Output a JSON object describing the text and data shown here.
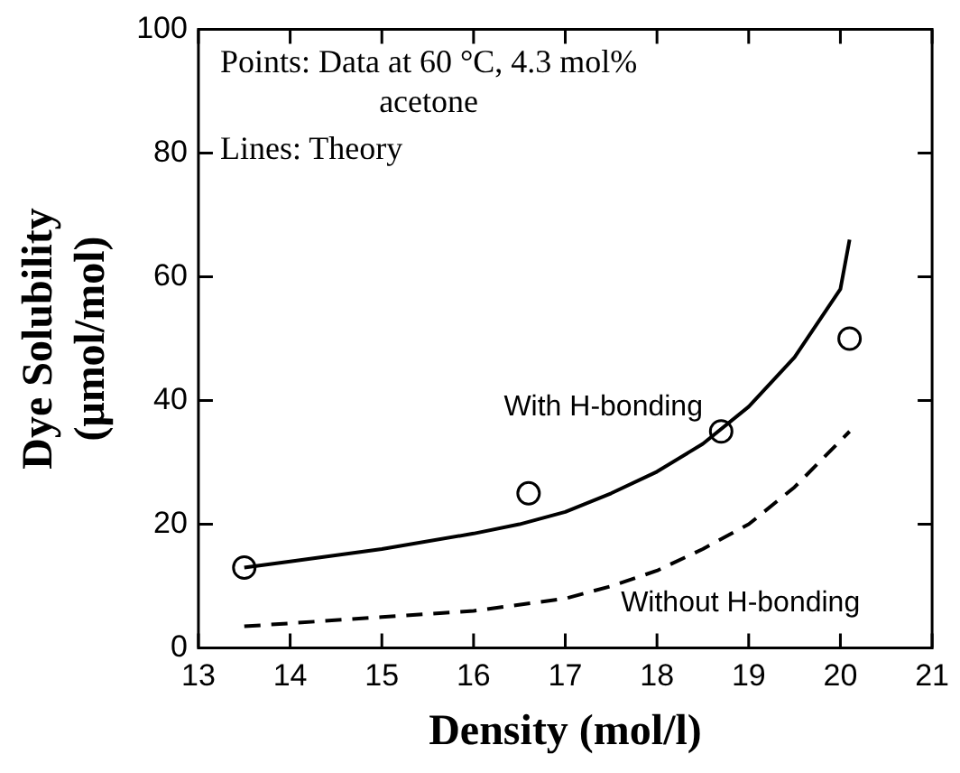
{
  "chart_data": {
    "type": "line",
    "xlabel": "Density (mol/l)",
    "ylabel": "Dye Solubility\n(μmol/mol)",
    "xlim": [
      13,
      21
    ],
    "xticks": [
      13,
      14,
      15,
      16,
      17,
      18,
      19,
      20,
      21
    ],
    "ylim": [
      0,
      100
    ],
    "yticks": [
      0,
      20,
      40,
      60,
      80,
      100
    ],
    "series": [
      {
        "name": "With H-bonding",
        "color": "#000000",
        "line_style": "solid",
        "marker": "none",
        "x": [
          13.5,
          14,
          15,
          16,
          16.5,
          17,
          17.5,
          18,
          18.5,
          19,
          19.5,
          20,
          20.1
        ],
        "values": [
          13,
          14,
          16,
          18.5,
          20,
          22,
          25,
          28.5,
          33,
          39,
          47,
          58,
          66
        ]
      },
      {
        "name": "Without H-bonding",
        "color": "#000000",
        "line_style": "dashed",
        "marker": "none",
        "x": [
          13.5,
          14,
          15,
          16,
          17,
          17.5,
          18,
          18.5,
          19,
          19.5,
          20.1
        ],
        "values": [
          3.5,
          4,
          5,
          6,
          8,
          10,
          12.5,
          16,
          20,
          26,
          35
        ]
      },
      {
        "type": "scatter",
        "color": "#000000",
        "marker": "circle",
        "x": [
          13.5,
          16.6,
          18.7,
          20.1
        ],
        "values": [
          13,
          25,
          35,
          50
        ]
      }
    ],
    "annotations": [
      "Points: Data at 60 °C, 4.3 mol%\nacetone",
      "Lines: Theory"
    ],
    "grid": false,
    "legend": false
  }
}
